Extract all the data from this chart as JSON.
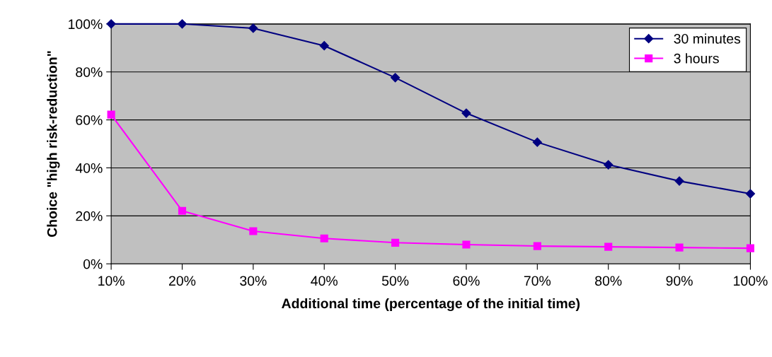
{
  "chart_data": {
    "type": "line",
    "xlabel": "Additional time (percentage of the initial time)",
    "ylabel": "Choice \"high risk-reduction\"",
    "categories": [
      "10%",
      "20%",
      "30%",
      "40%",
      "50%",
      "60%",
      "70%",
      "80%",
      "90%",
      "100%"
    ],
    "series": [
      {
        "name": "30 minutes",
        "color": "#000080",
        "marker": "diamond",
        "values": [
          100,
          100,
          98.2,
          90.9,
          77.6,
          62.8,
          50.7,
          41.3,
          34.5,
          29.2
        ]
      },
      {
        "name": "3 hours",
        "color": "#ff00ff",
        "marker": "square",
        "values": [
          62.2,
          22.1,
          13.6,
          10.6,
          8.8,
          8.0,
          7.4,
          7.1,
          6.8,
          6.5
        ]
      }
    ],
    "ylim": [
      0,
      100
    ],
    "yticks": [
      {
        "value": 0,
        "label": "0%"
      },
      {
        "value": 20,
        "label": "20%"
      },
      {
        "value": 40,
        "label": "40%"
      },
      {
        "value": 60,
        "label": "60%"
      },
      {
        "value": 80,
        "label": "80%"
      },
      {
        "value": 100,
        "label": "100%"
      }
    ],
    "grid": "y",
    "legend": "top right",
    "line_style": "solid"
  }
}
